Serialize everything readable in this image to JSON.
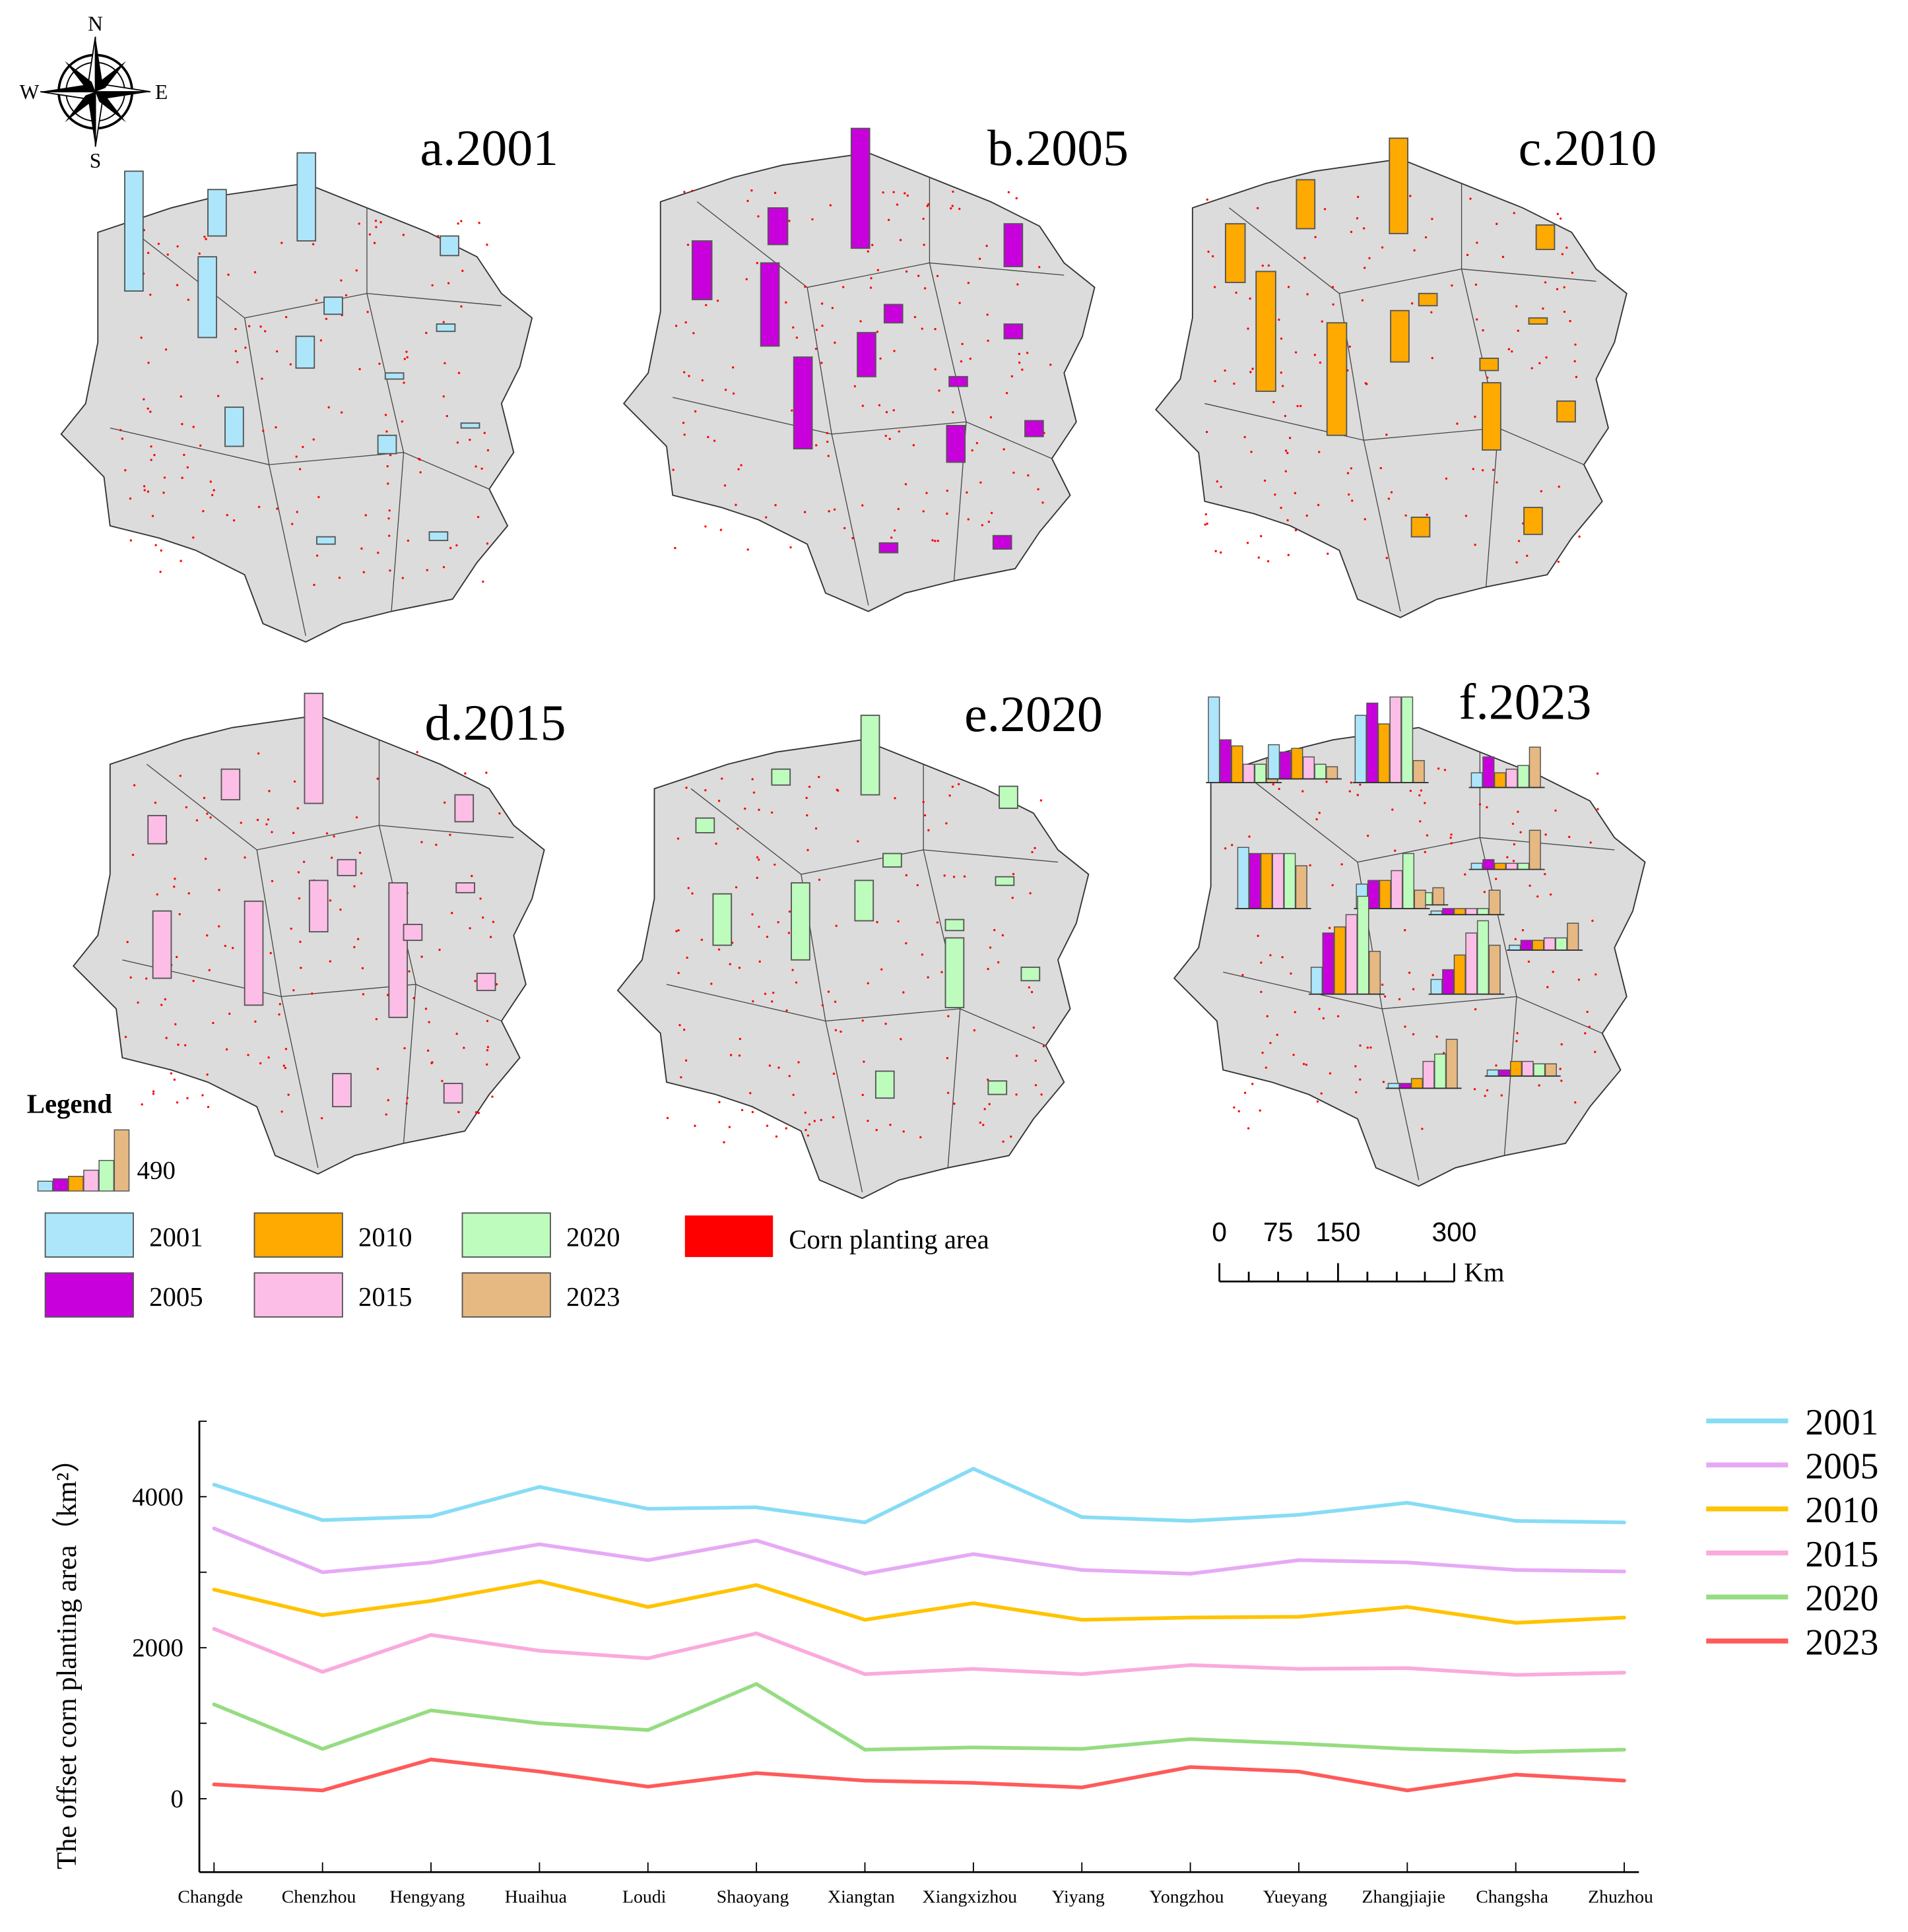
{
  "compass": {
    "n": "N",
    "s": "S",
    "e": "E",
    "w": "W"
  },
  "panels": [
    {
      "title": "a.2001",
      "color": "#ADE6FA"
    },
    {
      "title": "b.2005",
      "color": "#C800DC"
    },
    {
      "title": "c.2010",
      "color": "#FFAA00"
    },
    {
      "title": "d.2015",
      "color": "#FCBEE6"
    },
    {
      "title": "e.2020",
      "color": "#BEFCBE"
    },
    {
      "title": "f.2023",
      "color": "#E6B982"
    }
  ],
  "legend": {
    "title": "Legend",
    "bar_max": "490",
    "items": [
      {
        "label": "2001",
        "color": "#ADE6FA"
      },
      {
        "label": "2005",
        "color": "#C800DC"
      },
      {
        "label": "2010",
        "color": "#FFAA00"
      },
      {
        "label": "2015",
        "color": "#FCBEE6"
      },
      {
        "label": "2020",
        "color": "#BEFCBE"
      },
      {
        "label": "2023",
        "color": "#E6B982"
      }
    ],
    "corn_label": "Corn planting area",
    "corn_color": "#FF0000"
  },
  "scale_bar": {
    "ticks": [
      "0",
      "75",
      "150",
      "300"
    ],
    "unit": "Km"
  },
  "chart_data": {
    "type": "line",
    "ylabel": "The offset corn planting area（km²）",
    "xlabel": "",
    "ylim": [
      -1000,
      5000
    ],
    "yticks": [
      0,
      2000,
      4000
    ],
    "grid": false,
    "legend_position": "right",
    "categories": [
      "Changde",
      "Chenzhou",
      "Hengyang",
      "Huaihua",
      "Loudi",
      "Shaoyang",
      "Xiangtan",
      "Xiangxizhou",
      "Yiyang",
      "Yongzhou",
      "Yueyang",
      "Zhangjiajie",
      "Changsha",
      "Zhuzhou"
    ],
    "series": [
      {
        "name": "2001",
        "color": "#87DCF5",
        "values": [
          4160,
          3690,
          3740,
          4130,
          3840,
          3860,
          3660,
          4370,
          3730,
          3680,
          3760,
          3920,
          3680,
          3660
        ]
      },
      {
        "name": "2005",
        "color": "#E6AAF5",
        "values": [
          3580,
          3000,
          3130,
          3370,
          3160,
          3420,
          2980,
          3240,
          3030,
          2980,
          3160,
          3130,
          3030,
          3010
        ]
      },
      {
        "name": "2010",
        "color": "#FFC300",
        "values": [
          2770,
          2430,
          2620,
          2880,
          2540,
          2830,
          2370,
          2590,
          2370,
          2400,
          2410,
          2540,
          2330,
          2400
        ]
      },
      {
        "name": "2015",
        "color": "#FAAADC",
        "values": [
          2250,
          1680,
          2170,
          1960,
          1860,
          2190,
          1650,
          1720,
          1650,
          1770,
          1720,
          1730,
          1640,
          1670
        ]
      },
      {
        "name": "2020",
        "color": "#96DC82",
        "values": [
          1250,
          660,
          1170,
          1000,
          910,
          1520,
          650,
          680,
          660,
          790,
          730,
          660,
          620,
          650
        ]
      },
      {
        "name": "2023",
        "color": "#FF5A5A",
        "values": [
          190,
          110,
          520,
          360,
          160,
          340,
          240,
          210,
          150,
          420,
          360,
          110,
          320,
          240
        ]
      }
    ]
  }
}
